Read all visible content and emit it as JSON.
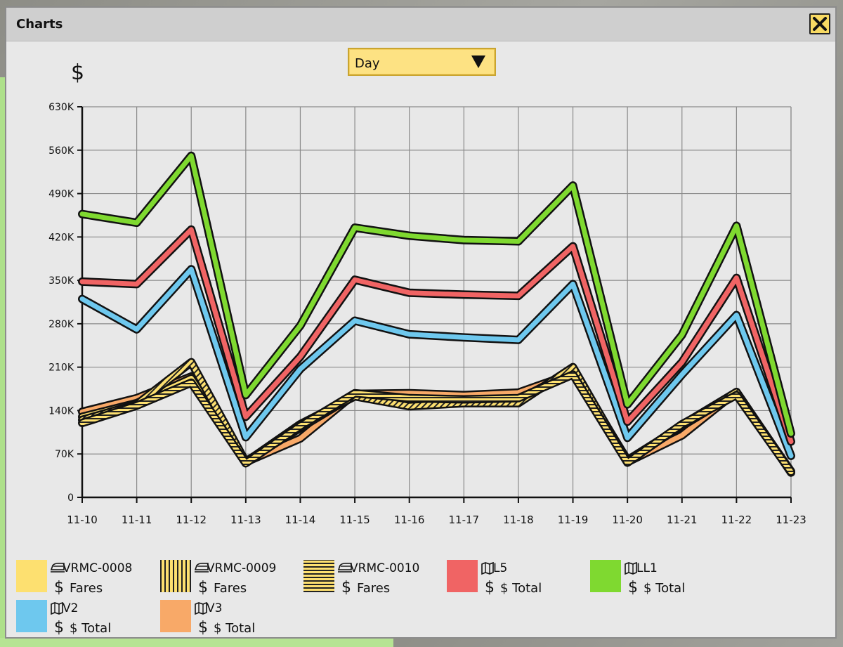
{
  "window": {
    "title": "Charts",
    "close_label": "X"
  },
  "dropdown": {
    "selected": "Day"
  },
  "chart_data": {
    "type": "line",
    "unit_label": "$",
    "categories": [
      "11-10",
      "11-11",
      "11-12",
      "11-13",
      "11-14",
      "11-15",
      "11-16",
      "11-17",
      "11-18",
      "11-19",
      "11-20",
      "11-21",
      "11-22",
      "11-23"
    ],
    "y_ticks": [
      "0",
      "70K",
      "140K",
      "210K",
      "280K",
      "350K",
      "420K",
      "490K",
      "560K",
      "630K"
    ],
    "ylim": [
      0,
      630000
    ],
    "grid": true,
    "legend_position": "bottom",
    "series": [
      {
        "name": "VRMC-0008",
        "metric": "Fares",
        "icon": "train-icon",
        "color": "#fde070",
        "pattern": "solid",
        "values": [
          130000,
          152000,
          192000,
          58000,
          112000,
          165000,
          150000,
          155000,
          157000,
          205000,
          60000,
          115000,
          168000,
          42000
        ]
      },
      {
        "name": "VRMC-0009",
        "metric": "Fares",
        "icon": "train-icon",
        "color": "#fde070",
        "pattern": "vertical-hatch",
        "values": [
          125000,
          150000,
          218000,
          57000,
          118000,
          163000,
          147000,
          152000,
          152000,
          210000,
          57000,
          117000,
          170000,
          40000
        ]
      },
      {
        "name": "VRMC-0010",
        "metric": "Fares",
        "icon": "train-icon",
        "color": "#fde070",
        "pattern": "horizontal-hatch",
        "values": [
          120000,
          148000,
          185000,
          55000,
          115000,
          168000,
          160000,
          158000,
          160000,
          198000,
          56000,
          118000,
          165000,
          41000
        ]
      },
      {
        "name": "L5",
        "metric": "$ Total",
        "icon": "map-icon",
        "color": "#f06464",
        "pattern": "solid",
        "values": [
          348000,
          344000,
          432000,
          130000,
          227000,
          351000,
          330000,
          327000,
          325000,
          405000,
          122000,
          218000,
          354000,
          90000
        ]
      },
      {
        "name": "LL1",
        "metric": "$ Total",
        "icon": "map-icon",
        "color": "#7fd930",
        "pattern": "solid",
        "values": [
          457000,
          443000,
          551000,
          165000,
          277000,
          435000,
          422000,
          415000,
          413000,
          503000,
          150000,
          262000,
          438000,
          103000
        ]
      },
      {
        "name": "V2",
        "metric": "$ Total",
        "icon": "map-icon",
        "color": "#6ec8ee",
        "pattern": "solid",
        "values": [
          320000,
          271000,
          368000,
          97000,
          207000,
          285000,
          263000,
          258000,
          254000,
          344000,
          96000,
          198000,
          294000,
          67000
        ]
      },
      {
        "name": "V3",
        "metric": "$ Total",
        "icon": "map-icon",
        "color": "#f8a968",
        "pattern": "solid",
        "values": [
          138000,
          160000,
          195000,
          57000,
          95000,
          167000,
          168000,
          165000,
          169000,
          200000,
          57000,
          100000,
          170000,
          41000
        ]
      }
    ]
  }
}
